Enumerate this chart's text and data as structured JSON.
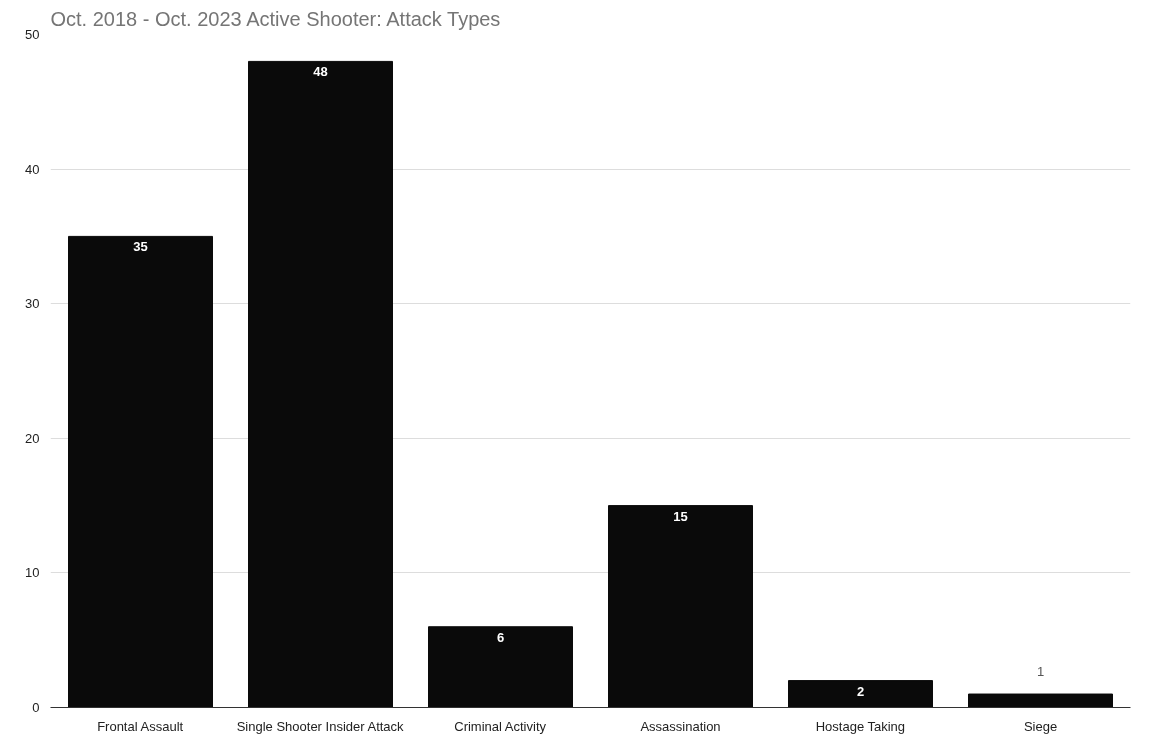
{
  "chart_data": {
    "type": "bar",
    "title": "Oct. 2018 - Oct. 2023 Active Shooter: Attack Types",
    "categories": [
      "Frontal Assault",
      "Single Shooter Insider Attack",
      "Criminal Activity",
      "Assassination",
      "Hostage Taking",
      "Siege"
    ],
    "values": [
      35,
      48,
      6,
      15,
      2,
      1
    ],
    "color": "#0a0a0a",
    "ylim": [
      0,
      50
    ],
    "yticks": [
      0,
      10,
      20,
      30,
      40,
      50
    ],
    "grid": "y",
    "data_labels": true
  }
}
